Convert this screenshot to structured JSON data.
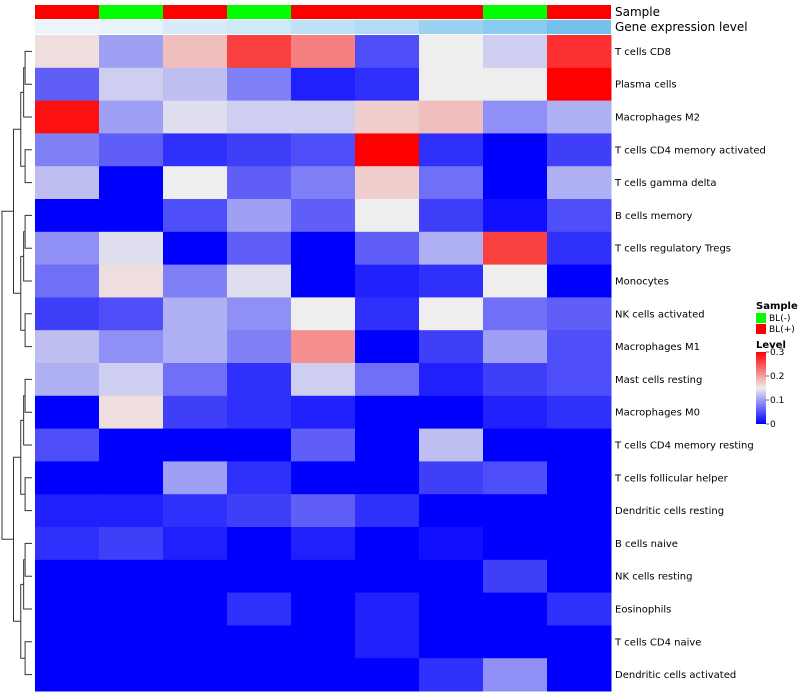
{
  "chart_data": {
    "type": "heatmap",
    "annotations": {
      "sample_label": "Sample",
      "gene_label": "Gene expression level",
      "sample_groups": [
        "BL(+)",
        "BL(-)",
        "BL(+)",
        "BL(-)",
        "BL(+)",
        "BL(+)",
        "BL(+)",
        "BL(-)",
        "BL(+)"
      ],
      "gene_levels": [
        0.02,
        0.03,
        0.15,
        0.2,
        0.3,
        0.4,
        0.55,
        0.65,
        0.8
      ]
    },
    "rows": [
      "T cells CD8",
      "Plasma cells",
      "Macrophages M2",
      "T cells CD4 memory activated",
      "T cells gamma delta",
      "B cells memory",
      "T cells regulatory  Tregs",
      "Monocytes",
      "NK cells activated",
      "Macrophages M1",
      "Mast cells resting",
      "Macrophages M0",
      "T cells CD4 memory resting",
      "T cells follicular helper",
      "Dendritic cells resting",
      "B cells naive",
      "NK cells resting",
      "Eosinophils",
      "T cells CD4 naive",
      "Dendritic cells activated"
    ],
    "values": [
      [
        0.16,
        0.1,
        0.18,
        0.26,
        0.22,
        0.05,
        0.15,
        0.13,
        0.27
      ],
      [
        0.06,
        0.13,
        0.12,
        0.08,
        0.02,
        0.03,
        0.15,
        0.15,
        0.3
      ],
      [
        0.29,
        0.1,
        0.14,
        0.13,
        0.13,
        0.17,
        0.18,
        0.09,
        0.11
      ],
      [
        0.08,
        0.06,
        0.03,
        0.04,
        0.05,
        0.3,
        0.03,
        0.0,
        0.04
      ],
      [
        0.12,
        0.0,
        0.15,
        0.06,
        0.08,
        0.17,
        0.07,
        0.0,
        0.11
      ],
      [
        0.0,
        0.0,
        0.05,
        0.1,
        0.06,
        0.15,
        0.04,
        0.01,
        0.05
      ],
      [
        0.09,
        0.14,
        0.0,
        0.06,
        0.0,
        0.06,
        0.11,
        0.26,
        0.03
      ],
      [
        0.07,
        0.16,
        0.08,
        0.14,
        0.0,
        0.02,
        0.03,
        0.15,
        0.0
      ],
      [
        0.04,
        0.05,
        0.11,
        0.09,
        0.15,
        0.03,
        0.15,
        0.07,
        0.06
      ],
      [
        0.12,
        0.09,
        0.11,
        0.08,
        0.21,
        0.0,
        0.04,
        0.1,
        0.05
      ],
      [
        0.11,
        0.13,
        0.07,
        0.03,
        0.13,
        0.07,
        0.02,
        0.04,
        0.05
      ],
      [
        0.0,
        0.16,
        0.04,
        0.03,
        0.02,
        0.0,
        0.0,
        0.02,
        0.03
      ],
      [
        0.05,
        0.0,
        0.0,
        0.0,
        0.06,
        0.0,
        0.12,
        0.0,
        0.0
      ],
      [
        0.0,
        0.0,
        0.1,
        0.03,
        0.0,
        0.0,
        0.04,
        0.05,
        0.0
      ],
      [
        0.02,
        0.02,
        0.03,
        0.04,
        0.06,
        0.03,
        0.0,
        0.0,
        0.0
      ],
      [
        0.03,
        0.04,
        0.02,
        0.0,
        0.02,
        0.0,
        0.01,
        0.0,
        0.0
      ],
      [
        0.0,
        0.0,
        0.0,
        0.0,
        0.0,
        0.0,
        0.0,
        0.04,
        0.0
      ],
      [
        0.0,
        0.0,
        0.0,
        0.03,
        0.0,
        0.02,
        0.0,
        0.0,
        0.03
      ],
      [
        0.0,
        0.0,
        0.0,
        0.0,
        0.0,
        0.02,
        0.0,
        0.0,
        0.0
      ],
      [
        0.0,
        0.0,
        0.0,
        0.0,
        0.0,
        0.0,
        0.03,
        0.09,
        0.0
      ]
    ],
    "color_scale": {
      "min": 0,
      "mid": 0.15,
      "max": 0.3,
      "colors": [
        "#0000ff",
        "#eeeeee",
        "#ff0000"
      ]
    },
    "legend": {
      "sample_title": "Sample",
      "sample_entries": [
        {
          "label": "BL(-)",
          "color": "#00ff00"
        },
        {
          "label": "BL(+)",
          "color": "#ff0000"
        }
      ],
      "level_title": "Level",
      "level_ticks": [
        {
          "value": 0.3,
          "label": "0.3"
        },
        {
          "value": 0.2,
          "label": "0.2"
        },
        {
          "value": 0.1,
          "label": "0.1"
        },
        {
          "value": 0,
          "label": "0"
        }
      ],
      "placement": "right"
    },
    "dendrogram": "left",
    "gene_level_colors": [
      "#eef6fb",
      "#56b4e9"
    ]
  }
}
